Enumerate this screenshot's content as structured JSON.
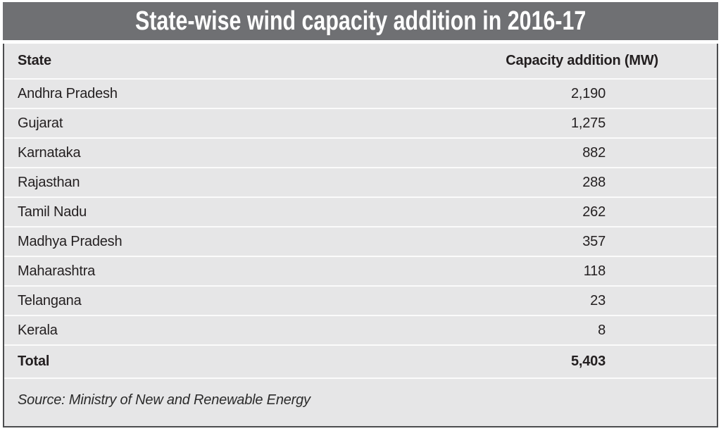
{
  "title": "State-wise wind capacity addition in 2016-17",
  "table": {
    "columns": {
      "state": "State",
      "capacity": "Capacity addition (MW)"
    },
    "rows": [
      {
        "state": "Andhra Pradesh",
        "capacity": "2,190"
      },
      {
        "state": "Gujarat",
        "capacity": "1,275"
      },
      {
        "state": "Karnataka",
        "capacity": "882"
      },
      {
        "state": "Rajasthan",
        "capacity": "288"
      },
      {
        "state": "Tamil Nadu",
        "capacity": "262"
      },
      {
        "state": "Madhya Pradesh",
        "capacity": "357"
      },
      {
        "state": "Maharashtra",
        "capacity": "118"
      },
      {
        "state": "Telangana",
        "capacity": "23"
      },
      {
        "state": "Kerala",
        "capacity": "8"
      }
    ],
    "total": {
      "label": "Total",
      "capacity": "5,403"
    }
  },
  "source": "Source: Ministry of New and Renewable Energy",
  "colors": {
    "title_bar": "#6f7073",
    "panel_bg": "#e6e6e7",
    "border": "#4c4d4f",
    "text": "#231f20",
    "separator": "#fbfbfb",
    "title_text": "#ffffff"
  },
  "chart_data": {
    "type": "table",
    "title": "State-wise wind capacity addition in 2016-17",
    "columns": [
      "State",
      "Capacity addition (MW)"
    ],
    "categories": [
      "Andhra Pradesh",
      "Gujarat",
      "Karnataka",
      "Rajasthan",
      "Tamil Nadu",
      "Madhya Pradesh",
      "Maharashtra",
      "Telangana",
      "Kerala"
    ],
    "values": [
      2190,
      1275,
      882,
      288,
      262,
      357,
      118,
      23,
      8
    ],
    "total": 5403,
    "source": "Source: Ministry of New and Renewable Energy"
  }
}
